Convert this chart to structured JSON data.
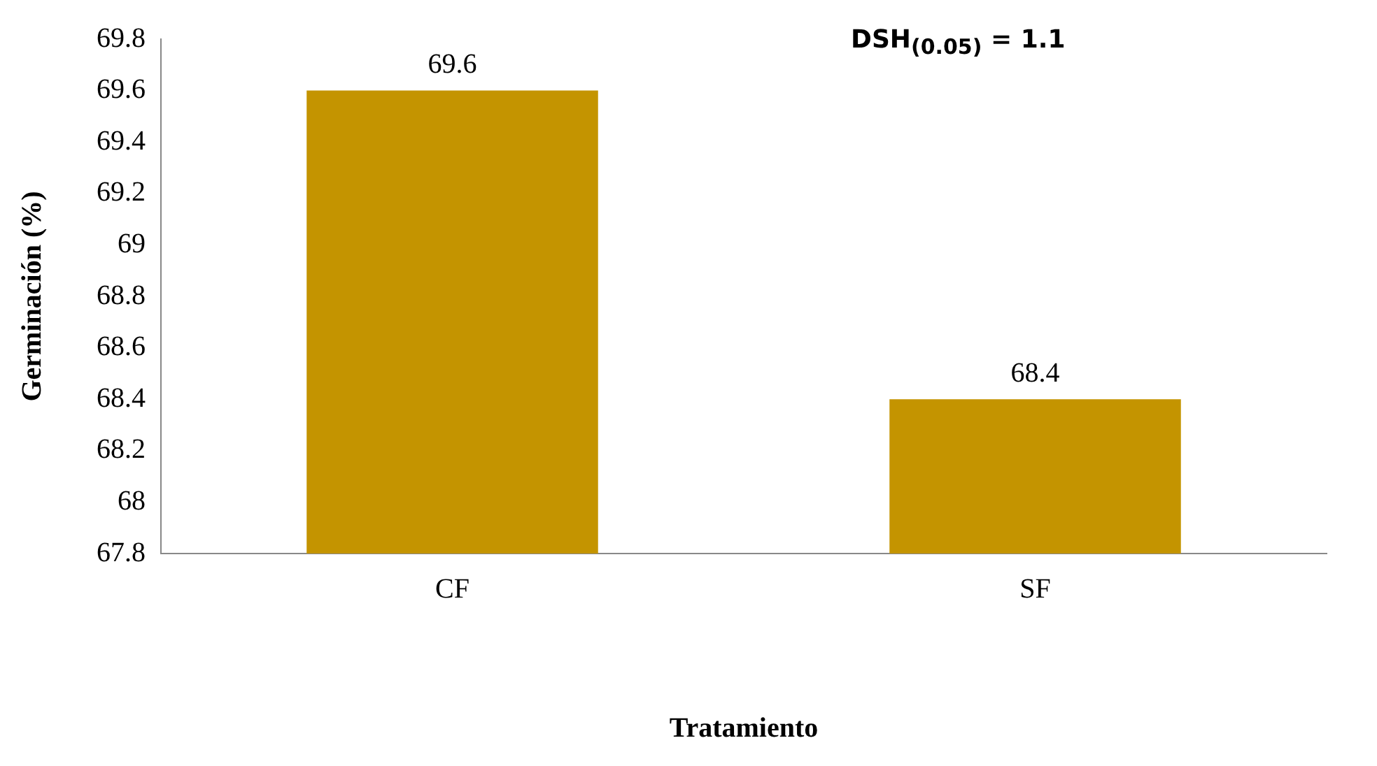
{
  "chart_data": {
    "type": "bar",
    "xlabel": "Tratamiento",
    "ylabel": "Germinación (%)",
    "categories": [
      "CF",
      "SF"
    ],
    "values": [
      69.6,
      68.4
    ],
    "color": "#c49400",
    "ylim": [
      67.8,
      69.8
    ],
    "yticks": [
      67.8,
      68,
      68.2,
      68.4,
      68.6,
      68.8,
      69,
      69.2,
      69.4,
      69.6,
      69.8
    ],
    "grid": false,
    "legend": false,
    "data_labels": true,
    "annotations": [
      "DSH$_{(0.05)}$ = 1.1"
    ]
  }
}
